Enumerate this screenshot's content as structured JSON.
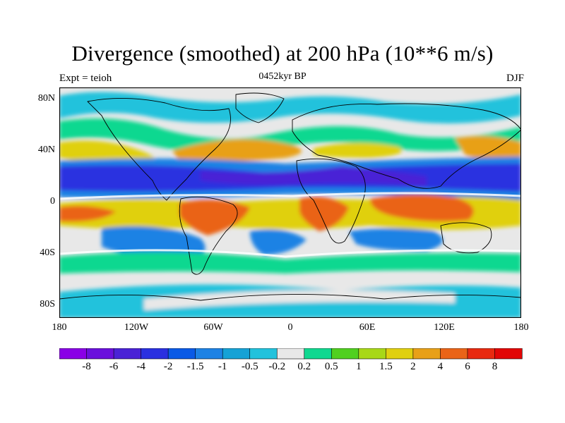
{
  "title": "Divergence (smoothed) at 200 hPa (10**6 m/s)",
  "experiment": "Expt = teioh",
  "period": "0452kyr BP",
  "season": "DJF",
  "y_axis_labels": [
    "80N",
    "40N",
    "0",
    "40S",
    "80S"
  ],
  "x_axis_labels": [
    "180",
    "120W",
    "60W",
    "0",
    "60E",
    "120E",
    "180"
  ],
  "colorbar": {
    "labels": [
      "-8",
      "-6",
      "-4",
      "-2",
      "-1.5",
      "-1",
      "-0.5",
      "-0.2",
      "0.2",
      "0.5",
      "1",
      "1.5",
      "2",
      "4",
      "6",
      "8"
    ],
    "colors": [
      "#8a00e6",
      "#6a10dc",
      "#4a22d6",
      "#2a30e0",
      "#0a5ae6",
      "#1e82e4",
      "#16a2d6",
      "#22c2dc",
      "#e8e8e8",
      "#10d890",
      "#50d020",
      "#a8d818",
      "#e0d010",
      "#e8a018",
      "#ea6418",
      "#e82a10",
      "#e20606"
    ]
  },
  "chart_data": {
    "type": "heatmap",
    "title": "Divergence (smoothed) at 200 hPa (10**6 m/s)",
    "subtitle_left": "Expt = teioh",
    "subtitle_center": "0452kyr BP",
    "subtitle_right": "DJF",
    "x_range": [
      -180,
      180
    ],
    "y_range": [
      -90,
      90
    ],
    "x_ticks": [
      "180",
      "120W",
      "60W",
      "0",
      "60E",
      "120E",
      "180"
    ],
    "y_ticks": [
      "80N",
      "40N",
      "0",
      "40S",
      "80S"
    ],
    "levels": [
      -8,
      -6,
      -4,
      -2,
      -1.5,
      -1,
      -0.5,
      -0.2,
      0.2,
      0.5,
      1,
      1.5,
      2,
      4,
      6,
      8
    ],
    "colorbar_orientation": "horizontal, bottom"
  }
}
